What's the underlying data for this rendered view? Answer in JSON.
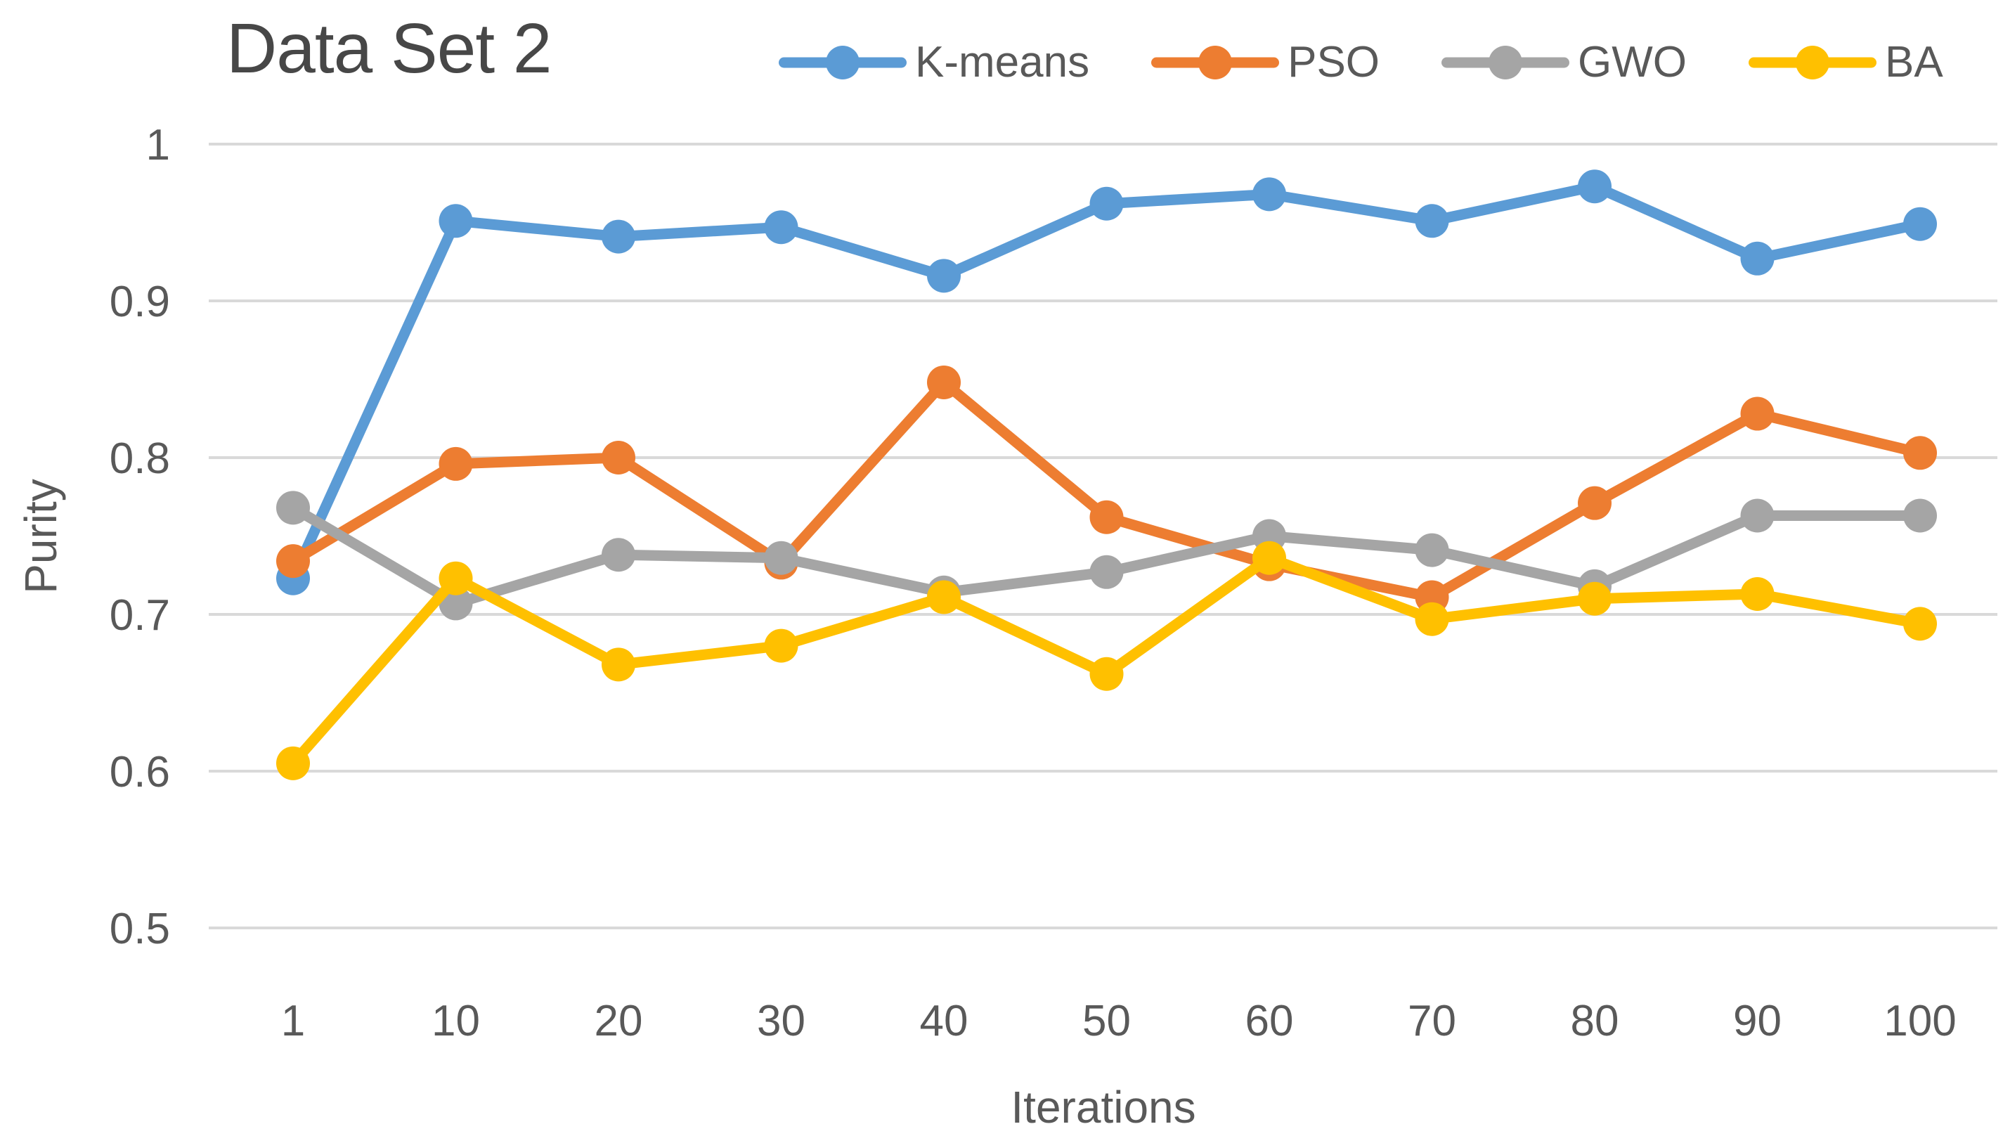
{
  "title": "Data Set 2",
  "legend": {
    "position": "top",
    "items": [
      "K-means",
      "PSO",
      "GWO",
      "BA"
    ]
  },
  "axes": {
    "y_title": "Purity",
    "x_title": "Iterations",
    "y_tick_labels": [
      "1",
      "0.9",
      "0.8",
      "0.7",
      "0.6",
      "0.5"
    ],
    "x_tick_labels": [
      "1",
      "10",
      "20",
      "30",
      "40",
      "50",
      "60",
      "70",
      "80",
      "90",
      "100"
    ]
  },
  "colors": {
    "grid": "#D9D9D9",
    "text": "#595959",
    "title_text": "#474747"
  },
  "chart_data": {
    "type": "line",
    "title": "Data Set 2",
    "xlabel": "Iterations",
    "ylabel": "Purity",
    "categories": [
      1,
      10,
      20,
      30,
      40,
      50,
      60,
      70,
      80,
      90,
      100
    ],
    "ylim": [
      0.5,
      1.0
    ],
    "y_tick_step": 0.1,
    "grid": "horizontal",
    "legend_position": "top",
    "marker": "circle",
    "series": [
      {
        "name": "K-means",
        "color": "#5B9BD5",
        "values": [
          0.723,
          0.951,
          0.941,
          0.947,
          0.916,
          0.962,
          0.968,
          0.951,
          0.973,
          0.927,
          0.949
        ]
      },
      {
        "name": "PSO",
        "color": "#ED7D31",
        "values": [
          0.734,
          0.796,
          0.8,
          0.733,
          0.848,
          0.762,
          0.732,
          0.711,
          0.771,
          0.828,
          0.803
        ]
      },
      {
        "name": "GWO",
        "color": "#A5A5A5",
        "values": [
          0.768,
          0.707,
          0.738,
          0.736,
          0.714,
          0.727,
          0.75,
          0.741,
          0.718,
          0.763,
          0.763
        ]
      },
      {
        "name": "BA",
        "color": "#FFC000",
        "values": [
          0.605,
          0.723,
          0.668,
          0.68,
          0.711,
          0.662,
          0.736,
          0.697,
          0.71,
          0.713,
          0.694
        ]
      }
    ]
  }
}
